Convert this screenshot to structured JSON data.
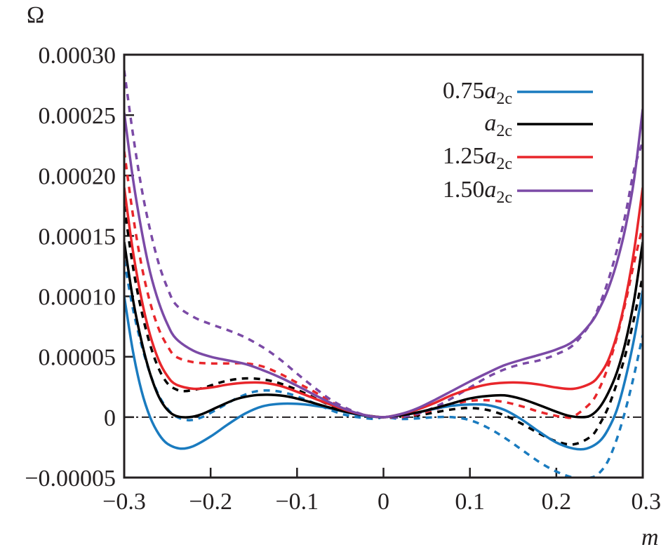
{
  "chart_data": {
    "type": "line",
    "title": "",
    "ylabel": "Ω",
    "xlabel": "m",
    "xlim": [
      -0.3,
      0.3
    ],
    "ylim": [
      -5e-05,
      0.0003
    ],
    "xticks": [
      -0.3,
      -0.2,
      -0.1,
      0,
      0.1,
      0.2,
      0.3
    ],
    "xtick_labels": [
      "−0.3",
      "−0.2",
      "−0.1",
      "0",
      "0.1",
      "0.2",
      "0.3"
    ],
    "yticks": [
      -5e-05,
      0,
      5e-05,
      0.0001,
      0.00015,
      0.0002,
      0.00025,
      0.0003
    ],
    "ytick_labels": [
      "−0.00005",
      "0",
      "0.00005",
      "0.00010",
      "0.00015",
      "0.00020",
      "0.00025",
      "0.00030"
    ],
    "grid": false,
    "reference_line": {
      "y": 0,
      "style": "dash-dot"
    },
    "legend": {
      "placement": "top-right",
      "entries": [
        {
          "prefix": "0.75",
          "var": "a",
          "sub": "2c",
          "color": "#1a7bbf"
        },
        {
          "prefix": "",
          "var": "a",
          "sub": "2c",
          "color": "#000000"
        },
        {
          "prefix": "1.25",
          "var": "a",
          "sub": "2c",
          "color": "#e8262b"
        },
        {
          "prefix": "1.50",
          "var": "a",
          "sub": "2c",
          "color": "#7b4aa6"
        }
      ]
    },
    "series": [
      {
        "name": "0.75a2c (solid)",
        "color": "#1a7bbf",
        "style": "solid",
        "x": [
          -0.3,
          -0.29,
          -0.28,
          -0.27,
          -0.26,
          -0.25,
          -0.235,
          -0.22,
          -0.2,
          -0.18,
          -0.16,
          -0.14,
          -0.12,
          -0.1,
          -0.08,
          -0.06,
          -0.04,
          -0.02,
          0,
          0.02,
          0.04,
          0.06,
          0.08,
          0.1,
          0.12,
          0.14,
          0.16,
          0.18,
          0.2,
          0.22,
          0.235,
          0.25,
          0.26,
          0.27,
          0.28,
          0.29,
          0.3
        ],
        "y": [
          0.0001,
          5.5e-05,
          2.2e-05,
          0.0,
          -1.4e-05,
          -2.2e-05,
          -2.6e-05,
          -2.4e-05,
          -1.6e-05,
          -6e-06,
          3e-06,
          9e-06,
          1.1e-05,
          1.1e-05,
          9.5e-06,
          7e-06,
          3.5e-06,
          1e-06,
          0.0,
          1.5e-06,
          4e-06,
          7e-06,
          9.5e-06,
          1.05e-05,
          1e-05,
          6e-06,
          -2e-06,
          -1.2e-05,
          -2.1e-05,
          -2.6e-05,
          -2.6e-05,
          -2e-05,
          -1e-05,
          6e-06,
          3.2e-05,
          6.5e-05,
          0.000105
        ]
      },
      {
        "name": "a2c (solid)",
        "color": "#000000",
        "style": "solid",
        "x": [
          -0.3,
          -0.29,
          -0.28,
          -0.27,
          -0.26,
          -0.25,
          -0.24,
          -0.225,
          -0.21,
          -0.19,
          -0.17,
          -0.15,
          -0.13,
          -0.11,
          -0.09,
          -0.07,
          -0.05,
          -0.03,
          -0.01,
          0,
          0.02,
          0.04,
          0.06,
          0.08,
          0.1,
          0.12,
          0.14,
          0.16,
          0.18,
          0.2,
          0.215,
          0.23,
          0.24,
          0.25,
          0.26,
          0.27,
          0.28,
          0.29,
          0.3
        ],
        "y": [
          0.000145,
          9.8e-05,
          6.3e-05,
          3.6e-05,
          1.7e-05,
          6e-06,
          1e-06,
          0.0,
          2.5e-06,
          9e-06,
          1.5e-05,
          1.8e-05,
          1.85e-05,
          1.7e-05,
          1.35e-05,
          9.5e-06,
          5.5e-06,
          2.5e-06,
          5e-07,
          0.0,
          1.5e-06,
          4e-06,
          7.5e-06,
          1.15e-05,
          1.55e-05,
          1.75e-05,
          1.8e-05,
          1.5e-05,
          1e-05,
          4.5e-06,
          1e-06,
          0.0,
          1.5e-06,
          8e-06,
          2e-05,
          3.7e-05,
          6.2e-05,
          9.7e-05,
          0.000145
        ]
      },
      {
        "name": "1.25a2c (solid)",
        "color": "#e8262b",
        "style": "solid",
        "x": [
          -0.3,
          -0.29,
          -0.28,
          -0.27,
          -0.26,
          -0.25,
          -0.24,
          -0.22,
          -0.2,
          -0.18,
          -0.16,
          -0.14,
          -0.12,
          -0.1,
          -0.08,
          -0.06,
          -0.04,
          -0.02,
          0,
          0.02,
          0.04,
          0.06,
          0.08,
          0.1,
          0.12,
          0.14,
          0.16,
          0.18,
          0.2,
          0.22,
          0.24,
          0.25,
          0.26,
          0.27,
          0.28,
          0.29,
          0.3
        ],
        "y": [
          0.00019,
          0.000138,
          9.8e-05,
          6.8e-05,
          4.7e-05,
          3.4e-05,
          2.7e-05,
          2.35e-05,
          2.45e-05,
          2.7e-05,
          2.85e-05,
          2.85e-05,
          2.6e-05,
          2.1e-05,
          1.55e-05,
          1e-05,
          5e-06,
          1.5e-06,
          0.0,
          2.5e-06,
          6.5e-06,
          1.2e-05,
          1.85e-05,
          2.35e-05,
          2.7e-05,
          2.85e-05,
          2.85e-05,
          2.7e-05,
          2.45e-05,
          2.35e-05,
          2.8e-05,
          3.5e-05,
          4.7e-05,
          6.8e-05,
          9.8e-05,
          0.000138,
          0.00019
        ]
      },
      {
        "name": "1.50a2c (solid)",
        "color": "#7b4aa6",
        "style": "solid",
        "x": [
          -0.3,
          -0.29,
          -0.28,
          -0.27,
          -0.26,
          -0.25,
          -0.24,
          -0.22,
          -0.2,
          -0.18,
          -0.16,
          -0.14,
          -0.12,
          -0.1,
          -0.08,
          -0.06,
          -0.04,
          -0.02,
          0,
          0.02,
          0.04,
          0.06,
          0.08,
          0.1,
          0.12,
          0.14,
          0.16,
          0.18,
          0.2,
          0.22,
          0.24,
          0.25,
          0.26,
          0.27,
          0.28,
          0.29,
          0.3
        ],
        "y": [
          0.000252,
          0.000198,
          0.000155,
          0.00012,
          9.5e-05,
          7.7e-05,
          6.5e-05,
          5.5e-05,
          5e-05,
          4.7e-05,
          4.4e-05,
          3.9e-05,
          3.3e-05,
          2.6e-05,
          1.85e-05,
          1.15e-05,
          5.5e-06,
          1.5e-06,
          0.0,
          2.5e-06,
          7.5e-06,
          1.45e-05,
          2.2e-05,
          2.95e-05,
          3.65e-05,
          4.3e-05,
          4.75e-05,
          5.15e-05,
          5.6e-05,
          6.3e-05,
          7.8e-05,
          9e-05,
          0.000106,
          0.000128,
          0.000157,
          0.000197,
          0.000255
        ]
      },
      {
        "name": "0.75a2c (dashed)",
        "color": "#1a7bbf",
        "style": "dashed",
        "x": [
          -0.3,
          -0.29,
          -0.28,
          -0.27,
          -0.26,
          -0.25,
          -0.24,
          -0.225,
          -0.21,
          -0.19,
          -0.17,
          -0.15,
          -0.13,
          -0.11,
          -0.09,
          -0.07,
          -0.05,
          -0.03,
          -0.01,
          0,
          0.02,
          0.04,
          0.06,
          0.08,
          0.1,
          0.12,
          0.14,
          0.16,
          0.18,
          0.2,
          0.22,
          0.24,
          0.25,
          0.26,
          0.27,
          0.28,
          0.29,
          0.3
        ],
        "y": [
          0.00013,
          9e-05,
          6e-05,
          3.6e-05,
          1.8e-05,
          7e-06,
          5e-07,
          -2.5e-06,
          0.0,
          7.5e-06,
          1.55e-05,
          2.1e-05,
          2.2e-05,
          1.95e-05,
          1.45e-05,
          8.5e-06,
          3e-06,
          0.0,
          -1.5e-06,
          0.0,
          -1.5e-06,
          -1e-06,
          0.0,
          0.0,
          -2.5e-06,
          -8.5e-06,
          -1.7e-05,
          -2.7e-05,
          -3.7e-05,
          -4.5e-05,
          -5e-05,
          -5e-05,
          -4.6e-05,
          -3.6e-05,
          -1.8e-05,
          6e-06,
          3.5e-05,
          6.8e-05
        ]
      },
      {
        "name": "a2c (dashed)",
        "color": "#000000",
        "style": "dashed",
        "x": [
          -0.3,
          -0.29,
          -0.28,
          -0.27,
          -0.26,
          -0.25,
          -0.24,
          -0.23,
          -0.21,
          -0.19,
          -0.17,
          -0.15,
          -0.13,
          -0.11,
          -0.09,
          -0.07,
          -0.05,
          -0.03,
          -0.01,
          0,
          0.02,
          0.04,
          0.06,
          0.08,
          0.1,
          0.12,
          0.14,
          0.16,
          0.18,
          0.2,
          0.22,
          0.24,
          0.25,
          0.26,
          0.27,
          0.28,
          0.29,
          0.3
        ],
        "y": [
          0.000175,
          0.000125,
          8.8e-05,
          6e-05,
          4e-05,
          2.8e-05,
          2.3e-05,
          2.15e-05,
          2.4e-05,
          2.85e-05,
          3.15e-05,
          3.2e-05,
          3e-05,
          2.55e-05,
          1.95e-05,
          1.25e-05,
          6.5e-06,
          2e-06,
          0.0,
          0.0,
          0.0,
          1.5e-06,
          4e-06,
          6.5e-06,
          7.5e-06,
          6e-06,
          1.5e-06,
          -5.5e-06,
          -1.35e-05,
          -2e-05,
          -2.25e-05,
          -1.6e-05,
          -6e-06,
          8e-06,
          2.8e-05,
          5.2e-05,
          8.2e-05,
          0.000117
        ]
      },
      {
        "name": "1.25a2c (dashed)",
        "color": "#e8262b",
        "style": "dashed",
        "x": [
          -0.3,
          -0.29,
          -0.28,
          -0.27,
          -0.26,
          -0.25,
          -0.24,
          -0.22,
          -0.2,
          -0.18,
          -0.16,
          -0.14,
          -0.12,
          -0.1,
          -0.08,
          -0.06,
          -0.04,
          -0.02,
          0,
          0.02,
          0.04,
          0.06,
          0.08,
          0.1,
          0.12,
          0.14,
          0.16,
          0.18,
          0.2,
          0.21,
          0.22,
          0.24,
          0.25,
          0.26,
          0.27,
          0.28,
          0.29,
          0.3
        ],
        "y": [
          0.00022,
          0.000168,
          0.000126,
          9.5e-05,
          7.3e-05,
          5.9e-05,
          5e-05,
          4.55e-05,
          4.45e-05,
          4.45e-05,
          4.45e-05,
          4.2e-05,
          3.6e-05,
          2.85e-05,
          2.1e-05,
          1.25e-05,
          5.5e-06,
          1e-06,
          0.0,
          0.0,
          2.5e-06,
          6.5e-06,
          1.05e-05,
          1.35e-05,
          1.4e-05,
          1.25e-05,
          9e-06,
          4.5e-06,
          1e-06,
          0.0,
          5e-07,
          1.2e-05,
          2.4e-05,
          4.2e-05,
          6.6e-05,
          9.5e-05,
          0.000128,
          0.000158
        ]
      },
      {
        "name": "1.50a2c (dashed)",
        "color": "#7b4aa6",
        "style": "dashed",
        "x": [
          -0.3,
          -0.29,
          -0.28,
          -0.27,
          -0.26,
          -0.25,
          -0.24,
          -0.22,
          -0.2,
          -0.18,
          -0.16,
          -0.14,
          -0.12,
          -0.1,
          -0.08,
          -0.06,
          -0.04,
          -0.02,
          0,
          0.02,
          0.04,
          0.06,
          0.08,
          0.1,
          0.12,
          0.14,
          0.16,
          0.18,
          0.2,
          0.22,
          0.24,
          0.25,
          0.26,
          0.27,
          0.28,
          0.29,
          0.3
        ],
        "y": [
          0.000287,
          0.000235,
          0.00019,
          0.000155,
          0.000127,
          0.000107,
          9.3e-05,
          8.3e-05,
          7.7e-05,
          7.2e-05,
          6.6e-05,
          5.8e-05,
          4.8e-05,
          3.6e-05,
          2.45e-05,
          1.4e-05,
          6.5e-06,
          1.5e-06,
          0.0,
          0.0,
          3e-06,
          8.5e-06,
          1.6e-05,
          2.45e-05,
          3.3e-05,
          3.95e-05,
          4.4e-05,
          4.7e-05,
          5.2e-05,
          6e-05,
          7.8e-05,
          9.3e-05,
          0.000113,
          0.000138,
          0.000168,
          0.000205,
          0.000228
        ]
      }
    ]
  }
}
